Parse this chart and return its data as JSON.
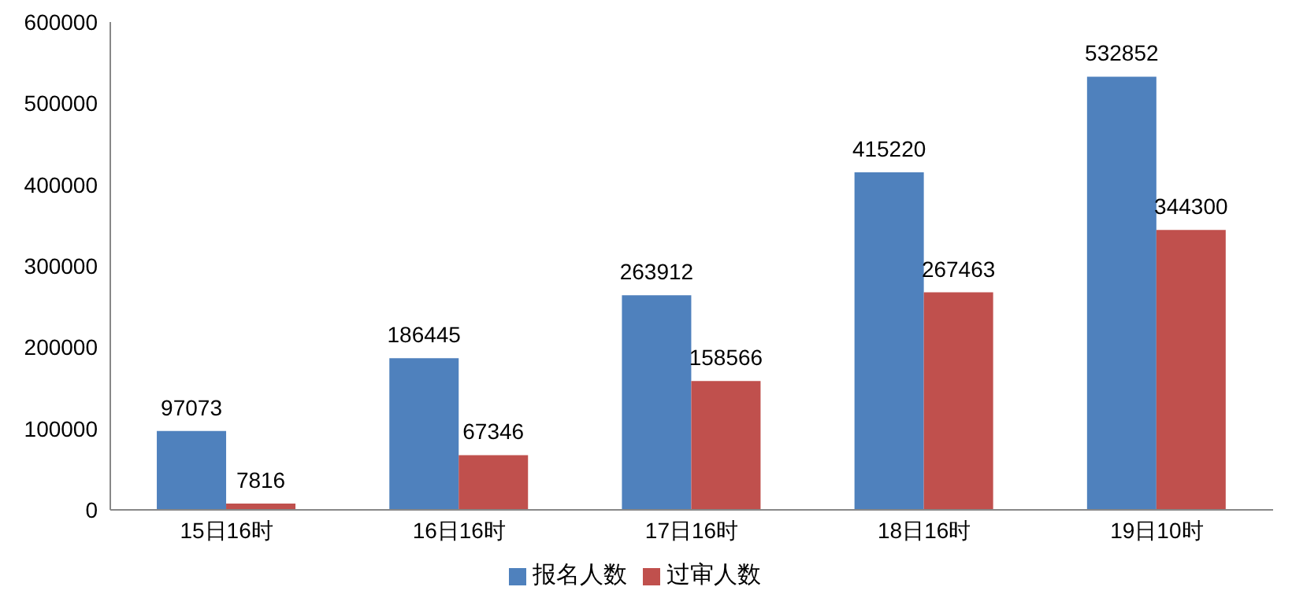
{
  "chart_data": {
    "type": "bar",
    "categories": [
      "15日16时",
      "16日16时",
      "17日16时",
      "18日16时",
      "19日10时"
    ],
    "series": [
      {
        "name": "报名人数",
        "color": "#4f81bd",
        "values": [
          97073,
          186445,
          263912,
          415220,
          532852
        ]
      },
      {
        "name": "过审人数",
        "color": "#c0504d",
        "values": [
          7816,
          67346,
          158566,
          267463,
          344300
        ]
      }
    ],
    "ylim": [
      0,
      600000
    ],
    "yticks": [
      0,
      100000,
      200000,
      300000,
      400000,
      500000,
      600000
    ],
    "grid": false,
    "legend": "bottom",
    "data_labels": true
  }
}
